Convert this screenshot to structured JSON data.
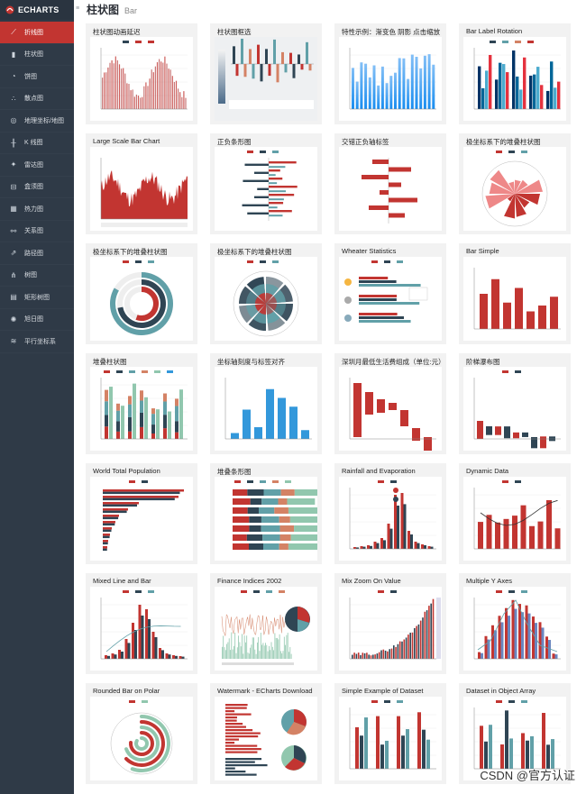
{
  "app": {
    "logo_text": "ECHARTS",
    "collapse_icon": "menu-collapse-icon"
  },
  "header": {
    "title": "柱状图",
    "subtitle": "Bar"
  },
  "sidebar": {
    "items": [
      {
        "label": "折线图",
        "icon": "line-chart-icon"
      },
      {
        "label": "柱状图",
        "icon": "bar-chart-icon"
      },
      {
        "label": "饼图",
        "icon": "pie-chart-icon"
      },
      {
        "label": "散点图",
        "icon": "scatter-icon"
      },
      {
        "label": "地理坐标/地图",
        "icon": "map-icon"
      },
      {
        "label": "K 线图",
        "icon": "candlestick-icon"
      },
      {
        "label": "雷达图",
        "icon": "radar-icon"
      },
      {
        "label": "盒须图",
        "icon": "boxplot-icon"
      },
      {
        "label": "热力图",
        "icon": "heatmap-icon"
      },
      {
        "label": "关系图",
        "icon": "graph-icon"
      },
      {
        "label": "路径图",
        "icon": "lines-icon"
      },
      {
        "label": "树图",
        "icon": "tree-icon"
      },
      {
        "label": "矩形树图",
        "icon": "treemap-icon"
      },
      {
        "label": "旭日图",
        "icon": "sunburst-icon"
      },
      {
        "label": "平行坐标系",
        "icon": "parallel-icon"
      }
    ],
    "active_index": 0,
    "active_color": "#c23531"
  },
  "cards": [
    {
      "title": "柱状图动画延迟",
      "kind": "bars_area"
    },
    {
      "title": "柱状图框选",
      "kind": "brush"
    },
    {
      "title": "特性示例：渐变色 阴影 点击缩放",
      "kind": "gradient"
    },
    {
      "title": "Bar Label Rotation",
      "kind": "rotation"
    },
    {
      "title": "Large Scale Bar Chart",
      "kind": "large"
    },
    {
      "title": "正负条形图",
      "kind": "posneg"
    },
    {
      "title": "交错正负轴标签",
      "kind": "staggered"
    },
    {
      "title": "极坐标系下的堆叠柱状图",
      "kind": "polar1"
    },
    {
      "title": "极坐标系下的堆叠柱状图",
      "kind": "polar2"
    },
    {
      "title": "极坐标系下的堆叠柱状图",
      "kind": "polar3"
    },
    {
      "title": "Wheater Statistics",
      "kind": "weather"
    },
    {
      "title": "Bar Simple",
      "kind": "simple"
    },
    {
      "title": "堆叠柱状图",
      "kind": "stacked"
    },
    {
      "title": "坐标轴刻度与标签对齐",
      "kind": "tick"
    },
    {
      "title": "深圳月最低生活费组成（单位:元）",
      "kind": "waterfall"
    },
    {
      "title": "阶梯瀑布图",
      "kind": "stairs"
    },
    {
      "title": "World Total Population",
      "kind": "hbar"
    },
    {
      "title": "堆叠条形图",
      "kind": "hstack"
    },
    {
      "title": "Rainfall and Evaporation",
      "kind": "rainfall"
    },
    {
      "title": "Dynamic Data",
      "kind": "dynamic"
    },
    {
      "title": "Mixed Line and Bar",
      "kind": "mixed"
    },
    {
      "title": "Finance Indices 2002",
      "kind": "finance"
    },
    {
      "title": "Mix Zoom On Value",
      "kind": "zoom"
    },
    {
      "title": "Multiple Y Axes",
      "kind": "multiy"
    },
    {
      "title": "Rounded Bar on Polar",
      "kind": "rounded"
    },
    {
      "title": "Watermark - ECharts Download",
      "kind": "watermark"
    },
    {
      "title": "Simple Example of Dataset",
      "kind": "dataset"
    },
    {
      "title": "Dataset in Object Array",
      "kind": "dataset2"
    }
  ],
  "colors": {
    "red": "#c23531",
    "navy": "#2f4554",
    "teal": "#61a0a8",
    "orange": "#d48265",
    "green": "#91c7ae",
    "blue": "#3398db"
  },
  "watermark": "CSDN @官方认证"
}
